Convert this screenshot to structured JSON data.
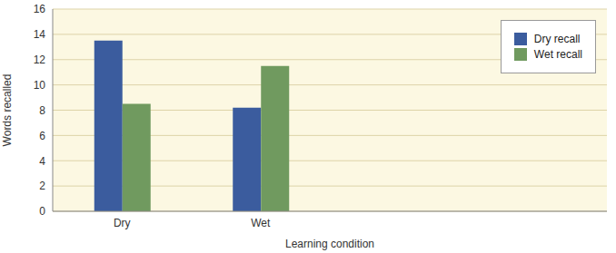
{
  "chart_data": {
    "type": "bar",
    "x_label": "Learning condition",
    "y_label": "Words recalled",
    "categories": [
      "Dry",
      "Wet",
      null,
      null
    ],
    "series": [
      {
        "name": "Dry recall",
        "color": "#3b5c9e",
        "values": [
          13.5,
          8.2,
          null,
          null
        ]
      },
      {
        "name": "Wet recall",
        "color": "#709a5f",
        "values": [
          8.5,
          11.5,
          null,
          null
        ]
      }
    ],
    "ylim": [
      0,
      16
    ],
    "yticks": [
      0,
      2,
      4,
      6,
      8,
      10,
      12,
      14,
      16
    ],
    "grid": true,
    "legend": "upper right"
  }
}
